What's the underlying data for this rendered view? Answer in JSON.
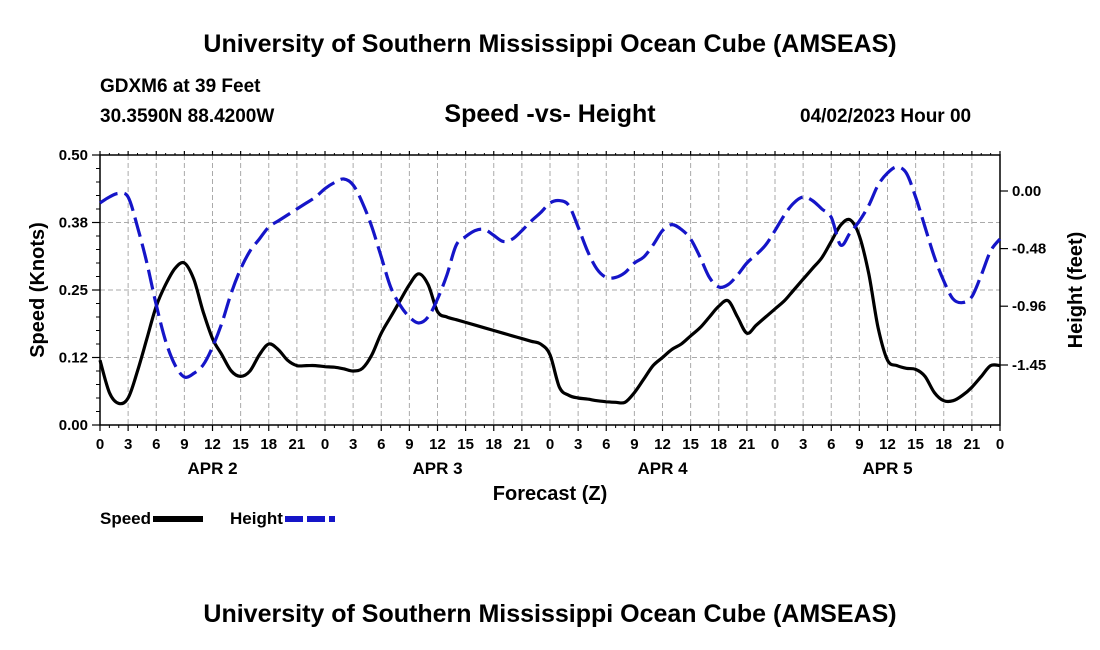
{
  "title": "University of Southern Mississippi Ocean Cube (AMSEAS)",
  "footer_title": "University of Southern Mississippi Ocean Cube (AMSEAS)",
  "station": "GDXM6 at 39 Feet",
  "coordinates": "30.3590N  88.4200W",
  "datetime": "04/02/2023 Hour 00",
  "colors": {
    "speed": "#000000",
    "height": "#1515c8",
    "grid": "#aaaaaa"
  },
  "chart_data": {
    "type": "line",
    "title": "Speed -vs- Height",
    "xlabel": "Forecast (Z)",
    "ylabel": "Speed (Knots)",
    "y2label": "Height (feet)",
    "xlim": [
      0,
      96
    ],
    "ylim": [
      0,
      0.5
    ],
    "y2lim": [
      -1.95,
      0.3
    ],
    "yticks": [
      0,
      0.125,
      0.25,
      0.375,
      0.5
    ],
    "yticklabels": [
      "0.00",
      "0.12",
      "0.25",
      "0.38",
      "0.50"
    ],
    "y2ticks": [
      0.0,
      -0.48,
      -0.96,
      -1.45
    ],
    "y2ticklabels": [
      "0.00",
      "-0.48",
      "-0.96",
      "-1.45"
    ],
    "xticks": [
      0,
      3,
      6,
      9,
      12,
      15,
      18,
      21,
      24,
      27,
      30,
      33,
      36,
      39,
      42,
      45,
      48,
      51,
      54,
      57,
      60,
      63,
      66,
      69,
      72,
      75,
      78,
      81,
      84,
      87,
      90,
      93,
      96
    ],
    "xticklabels": [
      "0",
      "3",
      "6",
      "9",
      "12",
      "15",
      "18",
      "21",
      "0",
      "3",
      "6",
      "9",
      "12",
      "15",
      "18",
      "21",
      "0",
      "3",
      "6",
      "9",
      "12",
      "15",
      "18",
      "21",
      "0",
      "3",
      "6",
      "9",
      "12",
      "15",
      "18",
      "21",
      "0"
    ],
    "day_labels": [
      {
        "x": 12,
        "label": "APR 2"
      },
      {
        "x": 36,
        "label": "APR 3"
      },
      {
        "x": 60,
        "label": "APR 4"
      },
      {
        "x": 84,
        "label": "APR 5"
      }
    ],
    "series": [
      {
        "name": "Speed",
        "axis": "left",
        "style": "solid",
        "x": [
          0,
          1,
          2,
          3,
          4,
          5,
          6,
          7,
          8,
          9,
          10,
          11,
          12,
          13,
          14,
          15,
          16,
          17,
          18,
          19,
          20,
          21,
          22,
          23,
          24,
          25,
          26,
          27,
          28,
          29,
          30,
          31,
          32,
          33,
          34,
          35,
          36,
          37,
          38,
          39,
          40,
          41,
          42,
          43,
          44,
          45,
          46,
          47,
          48,
          49,
          50,
          51,
          52,
          53,
          54,
          55,
          56,
          57,
          58,
          59,
          60,
          61,
          62,
          63,
          64,
          65,
          66,
          67,
          68,
          69,
          70,
          71,
          72,
          73,
          74,
          75,
          76,
          77,
          78,
          79,
          80,
          81,
          82,
          83,
          84,
          85,
          86,
          87,
          88,
          89,
          90,
          91,
          92,
          93,
          94,
          95,
          96
        ],
        "values": [
          0.12,
          0.06,
          0.04,
          0.05,
          0.1,
          0.16,
          0.22,
          0.26,
          0.29,
          0.3,
          0.27,
          0.21,
          0.16,
          0.13,
          0.1,
          0.09,
          0.1,
          0.13,
          0.15,
          0.14,
          0.12,
          0.11,
          0.11,
          0.11,
          0.108,
          0.107,
          0.104,
          0.1,
          0.105,
          0.13,
          0.17,
          0.2,
          0.23,
          0.26,
          0.28,
          0.26,
          0.21,
          0.2,
          0.195,
          0.19,
          0.185,
          0.18,
          0.175,
          0.17,
          0.165,
          0.16,
          0.155,
          0.15,
          0.13,
          0.07,
          0.055,
          0.05,
          0.048,
          0.045,
          0.043,
          0.042,
          0.042,
          0.06,
          0.085,
          0.11,
          0.125,
          0.14,
          0.15,
          0.165,
          0.18,
          0.2,
          0.22,
          0.23,
          0.2,
          0.17,
          0.185,
          0.2,
          0.215,
          0.23,
          0.25,
          0.27,
          0.29,
          0.31,
          0.34,
          0.37,
          0.38,
          0.35,
          0.28,
          0.18,
          0.12,
          0.11,
          0.105,
          0.103,
          0.09,
          0.06,
          0.045,
          0.045,
          0.055,
          0.07,
          0.09,
          0.11,
          0.11
        ]
      },
      {
        "name": "Height",
        "axis": "right",
        "style": "dashed",
        "x": [
          0,
          1,
          2,
          3,
          4,
          5,
          6,
          7,
          8,
          9,
          10,
          11,
          12,
          13,
          14,
          15,
          16,
          17,
          18,
          19,
          20,
          21,
          22,
          23,
          24,
          25,
          26,
          27,
          28,
          29,
          30,
          31,
          32,
          33,
          34,
          35,
          36,
          37,
          38,
          39,
          40,
          41,
          42,
          43,
          44,
          45,
          46,
          47,
          48,
          49,
          50,
          51,
          52,
          53,
          54,
          55,
          56,
          57,
          58,
          59,
          60,
          61,
          62,
          63,
          64,
          65,
          66,
          67,
          68,
          69,
          70,
          71,
          72,
          73,
          74,
          75,
          76,
          77,
          78,
          79,
          80,
          81,
          82,
          83,
          84,
          85,
          86,
          87,
          88,
          89,
          90,
          91,
          92,
          93,
          94,
          95,
          96
        ],
        "values": [
          -0.1,
          -0.05,
          -0.02,
          -0.05,
          -0.3,
          -0.6,
          -0.95,
          -1.25,
          -1.45,
          -1.55,
          -1.52,
          -1.45,
          -1.3,
          -1.1,
          -0.85,
          -0.65,
          -0.5,
          -0.4,
          -0.3,
          -0.25,
          -0.2,
          -0.15,
          -0.1,
          -0.05,
          0.02,
          0.07,
          0.1,
          0.05,
          -0.1,
          -0.3,
          -0.55,
          -0.8,
          -0.95,
          -1.05,
          -1.1,
          -1.05,
          -0.9,
          -0.7,
          -0.45,
          -0.38,
          -0.33,
          -0.32,
          -0.37,
          -0.42,
          -0.4,
          -0.33,
          -0.25,
          -0.18,
          -0.1,
          -0.08,
          -0.12,
          -0.3,
          -0.5,
          -0.65,
          -0.72,
          -0.72,
          -0.68,
          -0.6,
          -0.55,
          -0.45,
          -0.33,
          -0.28,
          -0.32,
          -0.4,
          -0.55,
          -0.72,
          -0.8,
          -0.78,
          -0.7,
          -0.6,
          -0.53,
          -0.45,
          -0.33,
          -0.2,
          -0.1,
          -0.05,
          -0.08,
          -0.15,
          -0.22,
          -0.45,
          -0.35,
          -0.25,
          -0.12,
          0.05,
          0.15,
          0.2,
          0.15,
          -0.05,
          -0.3,
          -0.55,
          -0.75,
          -0.9,
          -0.93,
          -0.88,
          -0.7,
          -0.5,
          -0.4
        ]
      }
    ],
    "legend": [
      "Speed",
      "Height"
    ],
    "grid": true
  }
}
